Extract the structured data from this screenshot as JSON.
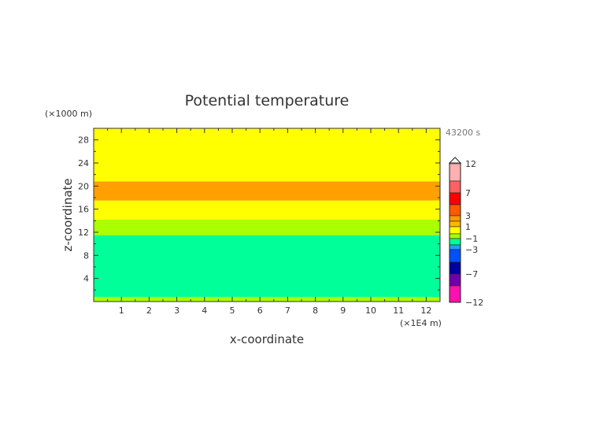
{
  "chart_data": {
    "type": "heatmap",
    "title": "Potential temperature",
    "xlabel": "x-coordinate",
    "ylabel": "z-coordinate",
    "x_unit": "(×1E4 m)",
    "y_unit": "(×1000 m)",
    "time_label": "43200 s",
    "xlim": [
      0,
      12.5
    ],
    "ylim": [
      0,
      30
    ],
    "x_ticks": [
      1,
      2,
      3,
      4,
      5,
      6,
      7,
      8,
      9,
      10,
      11,
      12
    ],
    "y_ticks": [
      4,
      8,
      12,
      16,
      20,
      24,
      28
    ],
    "bands": [
      {
        "z_from": 0,
        "z_to": 0.8,
        "color": "#aaff00"
      },
      {
        "z_from": 0.8,
        "z_to": 11.5,
        "color": "#00ff99"
      },
      {
        "z_from": 11.5,
        "z_to": 14.2,
        "color": "#aaff00"
      },
      {
        "z_from": 14.2,
        "z_to": 17.5,
        "color": "#ffff00"
      },
      {
        "z_from": 17.5,
        "z_to": 20.8,
        "color": "#ffa000"
      },
      {
        "z_from": 20.8,
        "z_to": 30,
        "color": "#ffff00"
      }
    ],
    "colorbar": {
      "levels": [
        12,
        10,
        7,
        5,
        3,
        2,
        1,
        0,
        -1,
        -2,
        -3,
        -5,
        -7,
        -10,
        -12
      ],
      "colors": [
        "#ffb0b0",
        "#ff6060",
        "#ff0000",
        "#ff5a00",
        "#ff9900",
        "#ffb800",
        "#ffff00",
        "#aaff00",
        "#00ff99",
        "#20a0ff",
        "#0050ff",
        "#0000a0",
        "#7000a8",
        "#ff10b0"
      ],
      "tick_labels": [
        "12",
        "7",
        "3",
        "1",
        "−1",
        "−3",
        "−7",
        "−12"
      ],
      "tick_values": [
        12,
        7,
        3,
        1,
        -1,
        -3,
        -7,
        -12
      ],
      "extend_top": true
    }
  }
}
